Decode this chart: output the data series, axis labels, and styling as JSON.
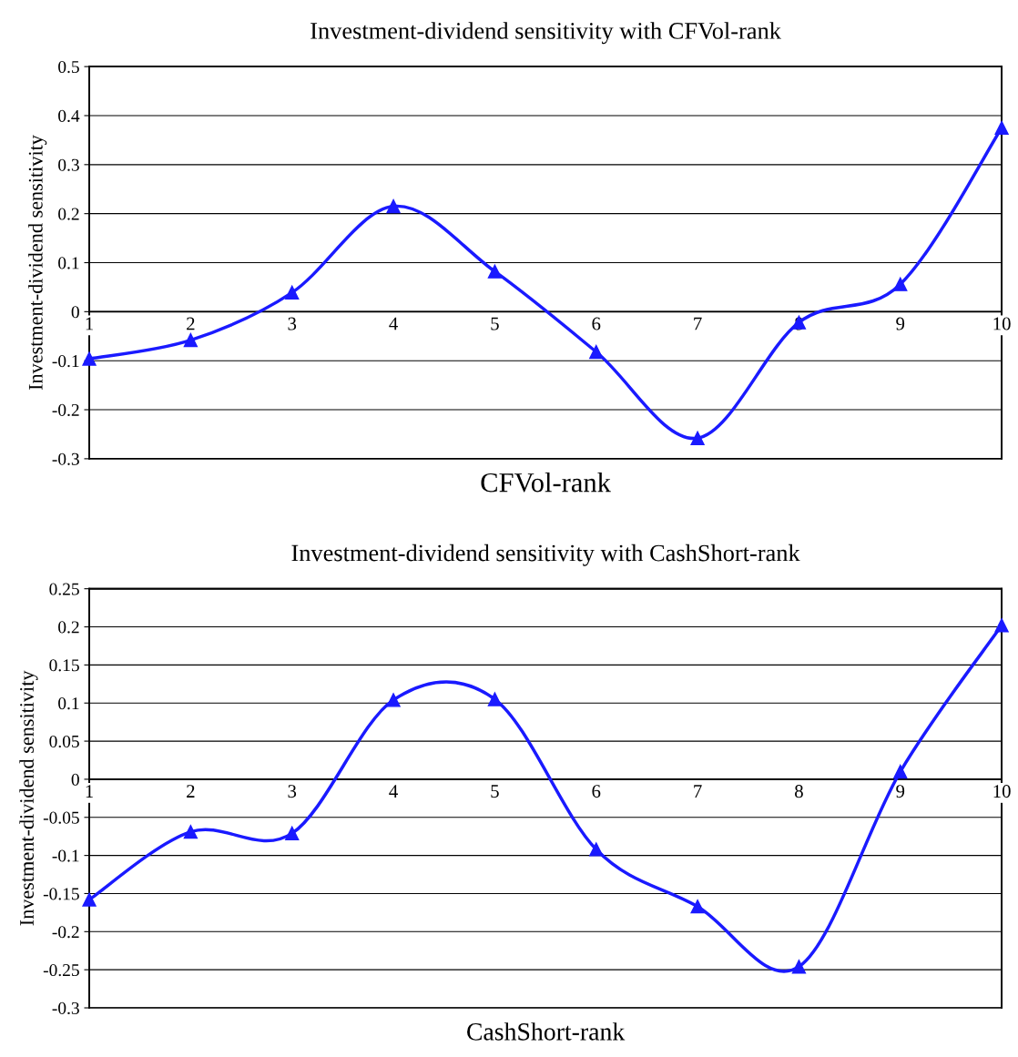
{
  "chart_data": [
    {
      "type": "line",
      "title": "Investment-dividend sensitivity with CFVol-rank",
      "xlabel": "CFVol-rank",
      "ylabel": "Investment-dividend sensitivity",
      "x": [
        1,
        2,
        3,
        4,
        5,
        6,
        7,
        8,
        9,
        10
      ],
      "series": [
        {
          "color": "#1a1aff",
          "values": [
            -0.096,
            -0.058,
            0.039,
            0.215,
            0.082,
            -0.082,
            -0.258,
            -0.022,
            0.056,
            0.375
          ]
        }
      ],
      "xlim": [
        1,
        10
      ],
      "xticks": [
        1,
        2,
        3,
        4,
        5,
        6,
        7,
        8,
        9,
        10
      ],
      "ylim": [
        -0.3,
        0.5
      ],
      "yticks": [
        -0.3,
        -0.2,
        -0.1,
        0,
        0.1,
        0.2,
        0.3,
        0.4,
        0.5
      ],
      "grid": "y",
      "marker": "triangle",
      "line_style": "solid"
    },
    {
      "type": "line",
      "title": "Investment-dividend sensitivity with CashShort-rank",
      "xlabel": "CashShort-rank",
      "ylabel": "Investment-dividend sensitivity",
      "x": [
        1,
        2,
        3,
        4,
        5,
        6,
        7,
        8,
        9,
        10
      ],
      "series": [
        {
          "color": "#1a1aff",
          "values": [
            -0.158,
            -0.069,
            -0.071,
            0.104,
            0.105,
            -0.092,
            -0.167,
            -0.246,
            0.01,
            0.202
          ]
        }
      ],
      "xlim": [
        1,
        10
      ],
      "xticks": [
        1,
        2,
        3,
        4,
        5,
        6,
        7,
        8,
        9,
        10
      ],
      "ylim": [
        -0.3,
        0.25
      ],
      "yticks": [
        -0.3,
        -0.25,
        -0.2,
        -0.15,
        -0.1,
        -0.05,
        0,
        0.05,
        0.1,
        0.15,
        0.2,
        0.25
      ],
      "grid": "y",
      "marker": "triangle",
      "line_style": "solid"
    }
  ]
}
